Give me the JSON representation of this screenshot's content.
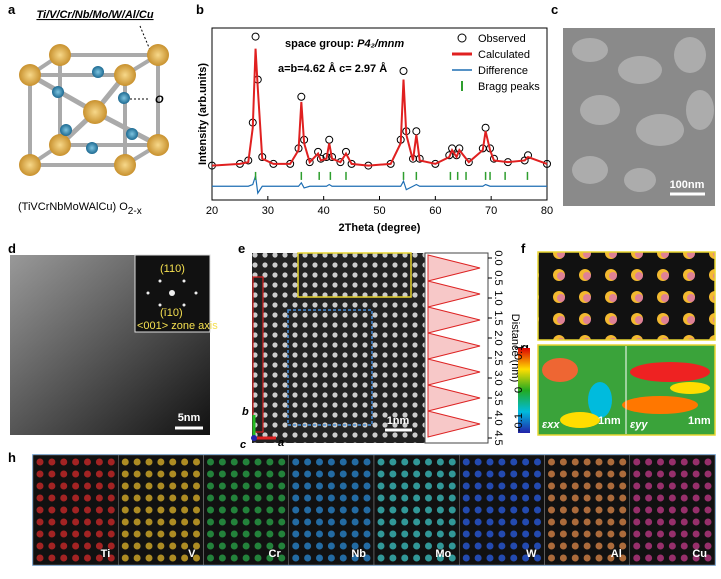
{
  "panel_labels": [
    "a",
    "b",
    "c",
    "d",
    "e",
    "f",
    "g",
    "h"
  ],
  "a": {
    "formula": "Ti/V/Cr/Nb/Mo/W/Al/Cu",
    "site": "O",
    "compound": "(TiVCrNbMoWAlCu) O",
    "subscript": "2-x"
  },
  "chart_data": {
    "type": "line",
    "xlabel": "2Theta (degree)",
    "ylabel": "Intensity (arb.units)",
    "annotations": [
      "space group: ",
      "P4₂/mnm",
      "a=b=4.62 Å  c= 2.97 Å"
    ],
    "x": [
      20,
      25,
      26.5,
      27.3,
      27.8,
      28.2,
      29,
      31,
      34,
      35.5,
      36,
      36.5,
      37.5,
      39,
      39.5,
      40.5,
      41,
      41.5,
      43,
      44,
      45,
      48,
      52,
      53.8,
      54.3,
      54.8,
      56,
      56.6,
      57.2,
      60,
      62.5,
      63,
      63.8,
      64.3,
      66,
      68.5,
      69,
      69.8,
      70.5,
      73,
      76,
      76.6,
      80
    ],
    "xlim": [
      20,
      80
    ],
    "xticks": [
      20,
      30,
      40,
      50,
      60,
      70,
      80
    ],
    "ylim": [
      0,
      100
    ],
    "series": [
      {
        "name": "Observed",
        "color": "#000000",
        "values": [
          20,
          21,
          23,
          45,
          95,
          70,
          25,
          21,
          21,
          30,
          60,
          35,
          22,
          28,
          24,
          25,
          35,
          25,
          22,
          28,
          21,
          20,
          21,
          35,
          75,
          40,
          24,
          40,
          24,
          21,
          26,
          30,
          26,
          30,
          22,
          30,
          42,
          30,
          24,
          22,
          23,
          26,
          21
        ]
      },
      {
        "name": "Calculated",
        "color": "#e02020",
        "values": [
          20,
          21,
          22,
          42,
          88,
          65,
          24,
          21,
          21,
          29,
          57,
          33,
          22,
          27,
          23,
          24,
          33,
          24,
          22,
          27,
          21,
          20,
          21,
          33,
          70,
          38,
          23,
          38,
          23,
          21,
          25,
          29,
          25,
          29,
          22,
          29,
          40,
          29,
          23,
          22,
          23,
          25,
          21
        ]
      },
      {
        "name": "Difference",
        "color": "#1f6fb4",
        "values": [
          8,
          8,
          8,
          9,
          14,
          4,
          8,
          8,
          8,
          8,
          10,
          7,
          8,
          8,
          8,
          8,
          9,
          8,
          8,
          8,
          8,
          8,
          8,
          8,
          11,
          6,
          8,
          9,
          8,
          8,
          8,
          8,
          8,
          8,
          8,
          8,
          9,
          8,
          8,
          8,
          8,
          8,
          8
        ]
      },
      {
        "name": "Bragg peaks",
        "color": "#2e9e2e",
        "x": [
          27.8,
          36,
          39.2,
          41.2,
          44,
          54.3,
          56.6,
          62.7,
          64,
          65.5,
          69,
          69.8,
          72.5,
          76.5
        ],
        "values": [
          14,
          14,
          14,
          14,
          14,
          14,
          14,
          14,
          14,
          14,
          14,
          14,
          14,
          14
        ]
      }
    ]
  },
  "c": {
    "scale": "100nm"
  },
  "d": {
    "scale": "5nm",
    "inset": [
      "(110)",
      "(ī10)",
      "<001> zone axis"
    ]
  },
  "e": {
    "scale": "1nm",
    "axis_label": "Distance (nm)",
    "ticks": [
      "0.0",
      "0.5",
      "1.0",
      "1.5",
      "2.0",
      "2.5",
      "3.0",
      "3.5",
      "4.0",
      "4.5"
    ],
    "axes": [
      "b",
      "a",
      "c"
    ]
  },
  "g": {
    "colorbar": [
      "0.1",
      "0",
      "-0.1"
    ],
    "strain": [
      "εxx",
      "εyy"
    ],
    "scales": [
      "1nm",
      "1nm"
    ]
  },
  "h": {
    "elements": [
      "Ti",
      "V",
      "Cr",
      "Nb",
      "Mo",
      "W",
      "Al",
      "Cu"
    ]
  }
}
